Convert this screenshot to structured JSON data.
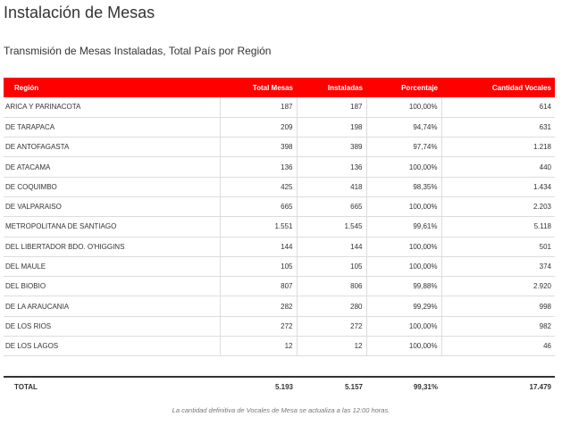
{
  "header": {
    "title": "Instalación de Mesas",
    "subtitle": "Transmisión de Mesas Instaladas, Total País por Región"
  },
  "table": {
    "columns": [
      "Región",
      "Total Mesas",
      "Instaladas",
      "Porcentaje",
      "Cantidad Vocales"
    ],
    "rows": [
      [
        "ARICA Y PARINACOTA",
        "187",
        "187",
        "100,00%",
        "614"
      ],
      [
        "DE TARAPACA",
        "209",
        "198",
        "94,74%",
        "631"
      ],
      [
        "DE ANTOFAGASTA",
        "398",
        "389",
        "97,74%",
        "1.218"
      ],
      [
        "DE ATACAMA",
        "136",
        "136",
        "100,00%",
        "440"
      ],
      [
        "DE COQUIMBO",
        "425",
        "418",
        "98,35%",
        "1.434"
      ],
      [
        "DE VALPARAISO",
        "665",
        "665",
        "100,00%",
        "2.203"
      ],
      [
        "METROPOLITANA DE SANTIAGO",
        "1.551",
        "1.545",
        "99,61%",
        "5.118"
      ],
      [
        "DEL LIBERTADOR BDO. O'HIGGINS",
        "144",
        "144",
        "100,00%",
        "501"
      ],
      [
        "DEL MAULE",
        "105",
        "105",
        "100,00%",
        "374"
      ],
      [
        "DEL BIOBIO",
        "807",
        "806",
        "99,88%",
        "2.920"
      ],
      [
        "DE LA ARAUCANIA",
        "282",
        "280",
        "99,29%",
        "998"
      ],
      [
        "DE LOS RIOS",
        "272",
        "272",
        "100,00%",
        "982"
      ],
      [
        "DE LOS LAGOS",
        "12",
        "12",
        "100,00%",
        "46"
      ]
    ],
    "total": [
      "TOTAL",
      "5.193",
      "5.157",
      "99,31%",
      "17.479"
    ]
  },
  "footnote": "La cantidad definitiva de Vocales de Mesa se actualiza a las 12:00 horas.",
  "colors": {
    "header_background": "#ff0000",
    "header_text": "#ffffff"
  }
}
